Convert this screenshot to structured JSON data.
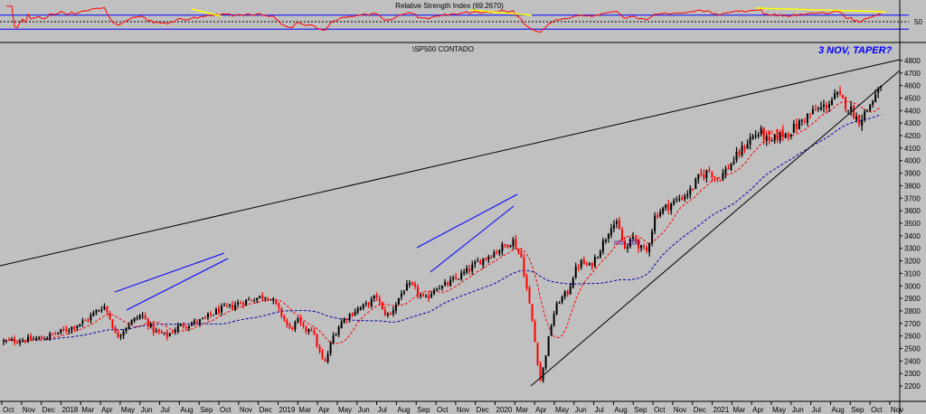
{
  "chart_data": [
    {
      "type": "line",
      "title": "Relative Strength Index (69.2670)",
      "ylim": [
        0,
        100
      ],
      "reference_levels": [
        30,
        50,
        70
      ],
      "right_tick_labels": [
        "50"
      ],
      "colors": {
        "rsi": "#ff0000",
        "bands": "#0000ff",
        "midline": "#000000",
        "annotation": "#ffff00"
      }
    },
    {
      "type": "candlestick",
      "title": "\\SP500 CONTADO",
      "annotation": "3 NOV, TAPER?",
      "ylim": [
        2150,
        4850
      ],
      "yticks": [
        2200,
        2300,
        2400,
        2500,
        2600,
        2700,
        2800,
        2900,
        3000,
        3100,
        3200,
        3300,
        3400,
        3500,
        3600,
        3700,
        3800,
        3900,
        4000,
        4100,
        4200,
        4300,
        4400,
        4500,
        4600,
        4700,
        4800
      ],
      "x_ticks": [
        "Oct",
        "Nov",
        "Dec",
        "2018",
        "Mar",
        "Apr",
        "May",
        "Jun",
        "Jul",
        "Aug",
        "Sep",
        "Oct",
        "Nov",
        "Dec",
        "2019",
        "Mar",
        "Apr",
        "May",
        "Jun",
        "Jul",
        "Aug",
        "Sep",
        "Oct",
        "Nov",
        "Dec",
        "2020",
        "Mar",
        "Apr",
        "May",
        "Jun",
        "Jul",
        "Aug",
        "Sep",
        "Oct",
        "Nov",
        "Dec",
        "2021",
        "Mar",
        "Apr",
        "May",
        "Jun",
        "Jul",
        "Aug",
        "Sep",
        "Oct",
        "Nov"
      ],
      "moving_averages": [
        {
          "name": "mm 50",
          "color": "#ff0000"
        },
        {
          "name": "mm 200",
          "color": "#0000aa"
        }
      ],
      "price_path": [
        [
          0,
          2555
        ],
        [
          3,
          2580
        ],
        [
          5,
          2650
        ],
        [
          6.5,
          2720
        ],
        [
          8,
          2845
        ],
        [
          8.5,
          2740
        ],
        [
          9,
          2590
        ],
        [
          10,
          2700
        ],
        [
          11,
          2770
        ],
        [
          12,
          2640
        ],
        [
          13,
          2600
        ],
        [
          14,
          2680
        ],
        [
          15,
          2700
        ],
        [
          16,
          2730
        ],
        [
          17,
          2800
        ],
        [
          18,
          2830
        ],
        [
          19,
          2870
        ],
        [
          20,
          2900
        ],
        [
          21,
          2925
        ],
        [
          21.5,
          2875
        ],
        [
          22.3,
          2750
        ],
        [
          22.8,
          2650
        ],
        [
          23.5,
          2720
        ],
        [
          24,
          2640
        ],
        [
          24.5,
          2680
        ],
        [
          25.3,
          2440
        ],
        [
          25.6,
          2370
        ],
        [
          26.3,
          2600
        ],
        [
          27,
          2720
        ],
        [
          28,
          2800
        ],
        [
          29,
          2850
        ],
        [
          29.8,
          2920
        ],
        [
          30.2,
          2800
        ],
        [
          30.8,
          2760
        ],
        [
          31.5,
          2900
        ],
        [
          32,
          2980
        ],
        [
          32.5,
          3000
        ],
        [
          33,
          2950
        ],
        [
          33.6,
          2880
        ],
        [
          34.5,
          3000
        ],
        [
          35,
          2990
        ],
        [
          36,
          3050
        ],
        [
          37,
          3120
        ],
        [
          38,
          3200
        ],
        [
          39,
          3260
        ],
        [
          40,
          3320
        ],
        [
          40.6,
          3370
        ],
        [
          41.3,
          3230
        ],
        [
          41.7,
          3000
        ],
        [
          42.2,
          2700
        ],
        [
          42.5,
          2470
        ],
        [
          42.85,
          2235
        ],
        [
          43.3,
          2480
        ],
        [
          43.8,
          2750
        ],
        [
          44.3,
          2880
        ],
        [
          45,
          2950
        ],
        [
          45.5,
          3100
        ],
        [
          46,
          3190
        ],
        [
          46.8,
          3150
        ],
        [
          47.5,
          3280
        ],
        [
          48,
          3380
        ],
        [
          48.5,
          3500
        ],
        [
          49,
          3480
        ],
        [
          49.6,
          3280
        ],
        [
          50.3,
          3400
        ],
        [
          50.8,
          3300
        ],
        [
          51.3,
          3270
        ],
        [
          52,
          3570
        ],
        [
          53,
          3640
        ],
        [
          54,
          3700
        ],
        [
          54.8,
          3760
        ],
        [
          55.5,
          3870
        ],
        [
          56.3,
          3920
        ],
        [
          57,
          3850
        ],
        [
          58,
          3970
        ],
        [
          59,
          4100
        ],
        [
          59.6,
          4180
        ],
        [
          60.4,
          4230
        ],
        [
          61.1,
          4130
        ],
        [
          61.8,
          4200
        ],
        [
          62.5,
          4220
        ],
        [
          63.3,
          4280
        ],
        [
          64,
          4350
        ],
        [
          64.8,
          4400
        ],
        [
          65.5,
          4430
        ],
        [
          66,
          4480
        ],
        [
          66.5,
          4520
        ],
        [
          67,
          4470
        ],
        [
          67.5,
          4420
        ],
        [
          68.2,
          4320
        ],
        [
          68.8,
          4390
        ],
        [
          69.3,
          4480
        ],
        [
          69.8,
          4550
        ],
        [
          70.2,
          4600
        ]
      ]
    }
  ],
  "colors": {
    "background": "#c0c0c0",
    "candle": "#000000",
    "candle_down": "#ff0000",
    "channel": "#0000ff",
    "trendline": "#000000",
    "annotation": "#0000ff"
  }
}
